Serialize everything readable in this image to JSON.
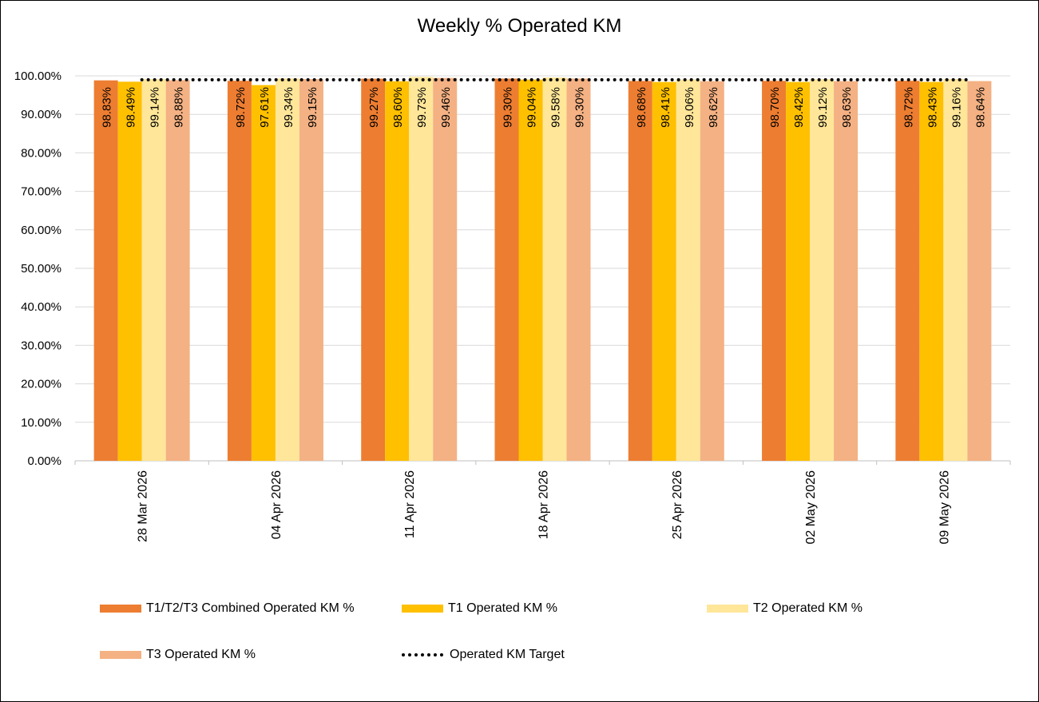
{
  "chart_data": {
    "type": "bar",
    "title": "Weekly % Operated KM",
    "categories": [
      "28 Mar 2026",
      "04 Apr 2026",
      "11 Apr 2026",
      "18 Apr 2026",
      "25 Apr 2026",
      "02 May 2026",
      "09 May 2026"
    ],
    "series": [
      {
        "name": "T1/T2/T3 Combined Operated KM %",
        "color": "#ED7D31",
        "values": [
          98.83,
          98.72,
          99.27,
          99.3,
          98.68,
          98.7,
          98.72
        ],
        "labels": [
          "98.83%",
          "98.72%",
          "99.27%",
          "99.30%",
          "98.68%",
          "98.70%",
          "98.72%"
        ]
      },
      {
        "name": "T1 Operated KM %",
        "color": "#FFC000",
        "values": [
          98.49,
          97.61,
          98.6,
          99.04,
          98.41,
          98.42,
          98.43
        ],
        "labels": [
          "98.49%",
          "97.61%",
          "98.60%",
          "99.04%",
          "98.41%",
          "98.42%",
          "98.43%"
        ]
      },
      {
        "name": "T2 Operated KM %",
        "color": "#FFE699",
        "values": [
          99.14,
          99.34,
          99.73,
          99.58,
          99.06,
          99.12,
          99.16
        ],
        "labels": [
          "99.14%",
          "99.34%",
          "99.73%",
          "99.58%",
          "99.06%",
          "99.12%",
          "99.16%"
        ]
      },
      {
        "name": "T3 Operated KM %",
        "color": "#F4B183",
        "values": [
          98.88,
          99.15,
          99.46,
          99.3,
          98.62,
          98.63,
          98.64
        ],
        "labels": [
          "98.88%",
          "99.15%",
          "99.46%",
          "99.30%",
          "98.62%",
          "98.63%",
          "98.64%"
        ]
      }
    ],
    "target": {
      "name": "Operated KM Target",
      "value": 99.0,
      "style": "dotted",
      "color": "#000000"
    },
    "ylim": [
      0,
      100
    ],
    "yticks": [
      "0.00%",
      "10.00%",
      "20.00%",
      "30.00%",
      "40.00%",
      "50.00%",
      "60.00%",
      "70.00%",
      "80.00%",
      "90.00%",
      "100.00%"
    ],
    "grid": true,
    "legend_position": "bottom"
  }
}
